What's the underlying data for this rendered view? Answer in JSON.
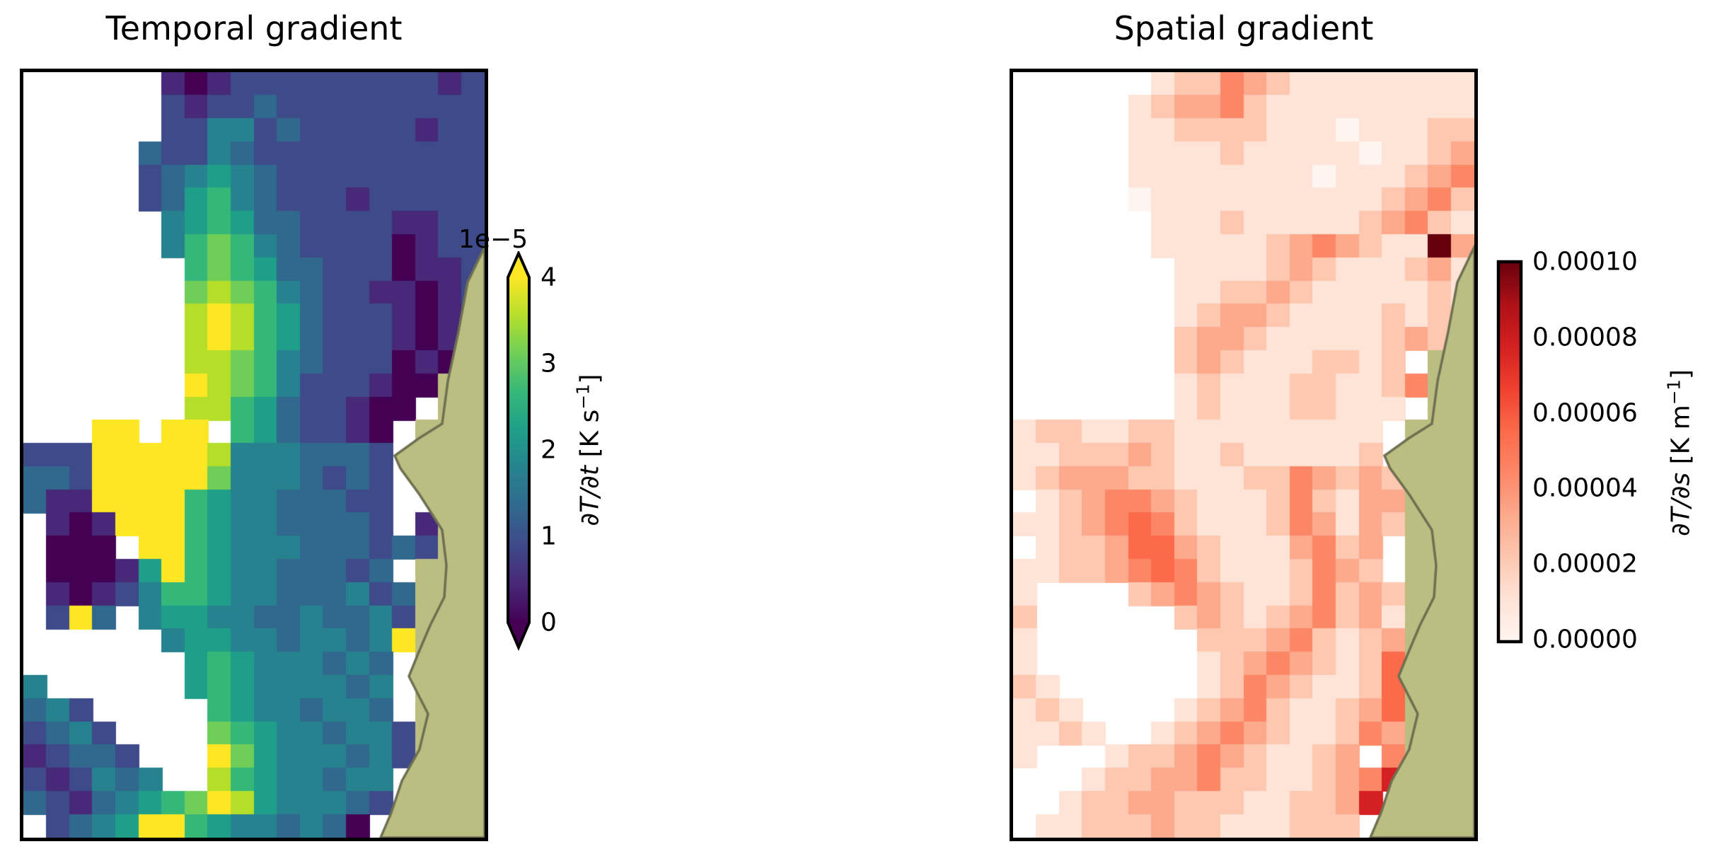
{
  "figure": {
    "background": "#ffffff",
    "left_title": "Temporal gradient",
    "right_title": "Spatial gradient"
  },
  "colors": {
    "panel_border": "#000000",
    "land_fill": "#bcbe81",
    "coast_stroke": "#6e7052",
    "viridis_stops": [
      "#440154",
      "#482878",
      "#3e4a89",
      "#31688e",
      "#26828e",
      "#1f9e89",
      "#35b779",
      "#6ece58",
      "#b5de2b",
      "#fde725"
    ],
    "reds_stops": [
      "#fff5f0",
      "#fee3d7",
      "#fdc7b0",
      "#fca98c",
      "#fc8767",
      "#fb6a4a",
      "#f0402f",
      "#d42020",
      "#ad1117",
      "#67000d"
    ]
  },
  "left_colorbar": {
    "offset_text": "1e−5",
    "tick_labels": [
      "4",
      "3",
      "2",
      "1",
      "0"
    ],
    "label_math": "∂T/∂t",
    "label_units_pre": " [K s",
    "label_sup": "−1",
    "label_post": "]",
    "extend": "both"
  },
  "right_colorbar": {
    "tick_labels": [
      "0.00010",
      "0.00008",
      "0.00006",
      "0.00004",
      "0.00002",
      "0.00000"
    ],
    "label_math": "∂T/∂s",
    "label_units_pre": " [K m",
    "label_sup": "−1",
    "label_post": "]",
    "extend": "neither"
  },
  "coast_path": [
    [
      652,
      247
    ],
    [
      628,
      297
    ],
    [
      615,
      367
    ],
    [
      600,
      437
    ],
    [
      592,
      497
    ],
    [
      560,
      517
    ],
    [
      525,
      542
    ],
    [
      533,
      560
    ],
    [
      560,
      597
    ],
    [
      592,
      647
    ],
    [
      598,
      697
    ],
    [
      595,
      742
    ],
    [
      575,
      782
    ],
    [
      558,
      822
    ],
    [
      545,
      854
    ],
    [
      572,
      907
    ],
    [
      560,
      957
    ],
    [
      535,
      1002
    ],
    [
      520,
      1047
    ],
    [
      505,
      1082
    ]
  ],
  "chart_data": [
    {
      "type": "heatmap",
      "title": "Temporal gradient",
      "variable": "∂T/∂t",
      "units": "K s⁻¹",
      "colormap": "viridis",
      "value_range": [
        0,
        4e-05
      ],
      "colorbar_ticks": [
        0,
        1e-05,
        2e-05,
        3e-05,
        4e-05
      ],
      "colorbar_offset": "1e−5",
      "colorbar_extend": "both",
      "legend_position": "right",
      "no_data": "white cells (NaN mask, left side and patches)",
      "land": "khaki coastal landmass along right edge",
      "grid_encoding": "each char is one cell; digit d -> value = (d/9)*4e-5 K/s; '.' = no data; 'L' = land",
      "cols": 20,
      "rows": 33,
      "grid": [
        "......10122222222212",
        "......21223222222222",
        "......22442322222122",
        ".....322432222222222",
        ".....234543222222222",
        ".....235643222122222",
        "......45653322221122",
        "......46764322220122",
        ".......6765332220112",
        ".......7876432211012",
        ".......8986532221012",
        ".......898653222101L",
        ".......887643222010L",
        ".......98764222100LL",
        ".......8865322100.LL",
        "...99.99.6532210.LLL",
        "2229999984443332.LLL",
        "3329999974443232.LLL",
        "3119999654433322..LL",
        ".101999654433332.1LL",
        ".000.9965444333232LL",
        ".000159654433323.LLL",
        ".1012466544333423LLL",
        ".293.455443343342LLL",
        "......45544344349LLL",
        ".......565444343.LLL",
        "4......565444434.LLL",
        "342.....65443443.LLL",
        "2342....765443442LLL",
        "12332...975444342LLL",
        "212434..86544344.LLL",
        "3213456798544432.LLL",
        ".23459965443430.LLLL"
      ]
    },
    {
      "type": "heatmap",
      "title": "Spatial gradient",
      "variable": "∂T/∂s",
      "units": "K m⁻¹",
      "colormap": "Reds",
      "value_range": [
        0,
        0.0001
      ],
      "colorbar_ticks": [
        0,
        2e-05,
        4e-05,
        6e-05,
        8e-05,
        0.0001
      ],
      "colorbar_extend": "neither",
      "legend_position": "right",
      "no_data": "white cells (NaN mask, left side and patches)",
      "land": "khaki coastal landmass along right edge",
      "grid_encoding": "each char is one cell; digit d -> value = (d/9)*1e-4 K/m; '.' = no data; 'L' = land",
      "cols": 20,
      "rows": 33,
      "grid": [
        "......12243211111111",
        ".....123342111111111",
        ".....112222111011122",
        ".....111121111101123",
        ".....111111110111234",
        ".....011111111112342",
        "......11121111123421",
        "......11111234321193",
        ".......1111232111231",
        ".......1122321111121",
        ".......1233211112121",
        ".......233211111232L",
        ".......2321112212.LL",
        ".......12111221124LL",
        ".......1211122111.LL",
        "1221122111111111.LLL",
        "1122232112111112.LLL",
        "12333221112243232LLL",
        ".1234432111242133LLL",
        "11234542111243132LLL",
        ".122355321113423.LLL",
        "1122345421112432.LLL",
        "1....234321124232LLL",
        "2......2321234231LLL",
        "1.......222342123LLL",
        "1.......123432125LLL",
        "21......124321125LLL",
        "121....1234211235LLL",
        "1121..12343211243LLL",
        "1...12234321123.4LLL",
        "...12233422112347LLL",
        "..12233222112237.LLL",
        ".11222322111222.LLLL"
      ]
    }
  ]
}
